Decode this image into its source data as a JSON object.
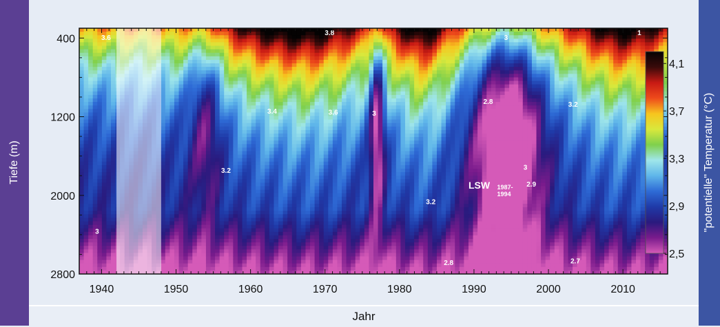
{
  "chart_data": {
    "type": "heatmap",
    "title": "",
    "xlabel": "Jahr",
    "ylabel": "Tiefe (m)",
    "colorbar_label": "\"potentielle\" Temperatur (°C)",
    "xlim": [
      1937,
      2016
    ],
    "ylim": [
      300,
      2800
    ],
    "y_inverted": true,
    "x_ticks": [
      1940,
      1950,
      1960,
      1970,
      1980,
      1990,
      2000,
      2010
    ],
    "y_ticks": [
      400,
      1200,
      2000,
      2800
    ],
    "colorbar": {
      "range": [
        2.5,
        4.2
      ],
      "ticks": [
        "4,1",
        "3,7",
        "3,3",
        "2,9",
        "2,5"
      ],
      "tick_values": [
        4.1,
        3.7,
        3.3,
        2.9,
        2.5
      ],
      "colors": [
        "#d55ab8",
        "#7a1b8c",
        "#2a1a7e",
        "#1f3aa8",
        "#2e6bd6",
        "#5fb6ea",
        "#9fe6ea",
        "#7fd04c",
        "#d9e83c",
        "#f7c51e",
        "#ee4b1b",
        "#c81a14",
        "#3a0a0a",
        "#050303"
      ]
    },
    "data_gap": {
      "from": 1942,
      "to": 1948
    },
    "contour_labels": [
      {
        "text": "3.6",
        "x": 1940.6,
        "y": 420
      },
      {
        "text": "3.8",
        "x": 1970.6,
        "y": 370
      },
      {
        "text": "3.4",
        "x": 1962.9,
        "y": 1170
      },
      {
        "text": "3.6",
        "x": 1971.1,
        "y": 1180
      },
      {
        "text": "3.2",
        "x": 1956.7,
        "y": 1770
      },
      {
        "text": "3",
        "x": 1976.6,
        "y": 1190
      },
      {
        "text": "3",
        "x": 1994.3,
        "y": 420
      },
      {
        "text": "2.8",
        "x": 1991.9,
        "y": 1070
      },
      {
        "text": "3.2",
        "x": 2003.3,
        "y": 1100
      },
      {
        "text": "3",
        "x": 1939.4,
        "y": 2390
      },
      {
        "text": "3.2",
        "x": 1984.2,
        "y": 2090
      },
      {
        "text": "3",
        "x": 1996.9,
        "y": 1740
      },
      {
        "text": "2.9",
        "x": 1997.7,
        "y": 1910
      },
      {
        "text": "2.8",
        "x": 1986.6,
        "y": 2710
      },
      {
        "text": "2.7",
        "x": 2003.6,
        "y": 2690
      },
      {
        "text": "1",
        "x": 2012.2,
        "y": 370
      }
    ],
    "annotation": {
      "text": "LSW",
      "sub_top": "1987-",
      "sub_bottom": "1994",
      "x": 1990.7,
      "y": 1930
    }
  }
}
